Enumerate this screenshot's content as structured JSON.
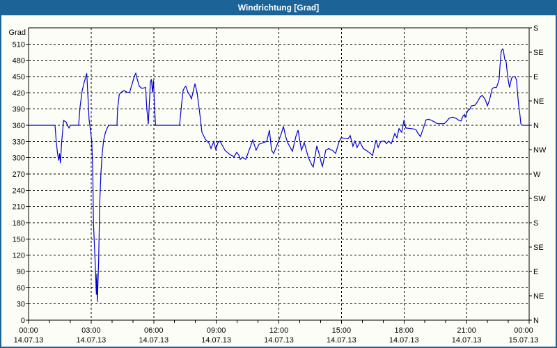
{
  "window": {
    "title": "Windrichtung [Grad]",
    "titlebar_color": "#1c6398",
    "background_color": "#fdfdf7"
  },
  "chart_data": {
    "type": "line",
    "title": "Windrichtung [Grad]",
    "grid": true,
    "legend": "none",
    "y_axis": {
      "unit_label": "Grad",
      "range": [
        0,
        540
      ],
      "tick_step": 30,
      "ticks": [
        0,
        30,
        60,
        90,
        120,
        150,
        180,
        210,
        240,
        270,
        300,
        330,
        360,
        390,
        420,
        450,
        480,
        510
      ]
    },
    "y_axis_right": {
      "description": "compass directions every 45 degrees",
      "ticks": [
        {
          "value": 540,
          "label": "S"
        },
        {
          "value": 495,
          "label": "SE"
        },
        {
          "value": 450,
          "label": "E"
        },
        {
          "value": 405,
          "label": "NE"
        },
        {
          "value": 360,
          "label": "N"
        },
        {
          "value": 315,
          "label": "NW"
        },
        {
          "value": 270,
          "label": "W"
        },
        {
          "value": 225,
          "label": "SW"
        },
        {
          "value": 180,
          "label": "S"
        },
        {
          "value": 135,
          "label": "SE"
        },
        {
          "value": 90,
          "label": "E"
        },
        {
          "value": 45,
          "label": "NE"
        },
        {
          "value": 0,
          "label": "N"
        }
      ]
    },
    "x_axis": {
      "range_hours": [
        0,
        24
      ],
      "gridline_every_hours": 3,
      "minor_tick_every_hours": 1,
      "major_ticks": [
        {
          "hours": 0,
          "time": "00:00",
          "date": "14.07.13"
        },
        {
          "hours": 3,
          "time": "03:00",
          "date": "14.07.13"
        },
        {
          "hours": 6,
          "time": "06:00",
          "date": "14.07.13"
        },
        {
          "hours": 9,
          "time": "09:00",
          "date": "14.07.13"
        },
        {
          "hours": 12,
          "time": "12:00",
          "date": "14.07.13"
        },
        {
          "hours": 15,
          "time": "15:00",
          "date": "14.07.13"
        },
        {
          "hours": 18,
          "time": "18:00",
          "date": "14.07.13"
        },
        {
          "hours": 21,
          "time": "21:00",
          "date": "14.07.13"
        },
        {
          "hours": 24,
          "time": "00:00",
          "date": "15.07.13"
        }
      ]
    },
    "series": [
      {
        "name": "Windrichtung",
        "color": "#0000cc",
        "points": [
          [
            0,
            360
          ],
          [
            1.27,
            360
          ],
          [
            1.33,
            330
          ],
          [
            1.39,
            308
          ],
          [
            1.45,
            295
          ],
          [
            1.49,
            308
          ],
          [
            1.53,
            290
          ],
          [
            1.59,
            330
          ],
          [
            1.64,
            351
          ],
          [
            1.68,
            369
          ],
          [
            1.8,
            366
          ],
          [
            1.87,
            360
          ],
          [
            1.94,
            355
          ],
          [
            2,
            360
          ],
          [
            2.4,
            360
          ],
          [
            2.47,
            394
          ],
          [
            2.57,
            424
          ],
          [
            2.68,
            441
          ],
          [
            2.79,
            456
          ],
          [
            2.85,
            411
          ],
          [
            2.9,
            371
          ],
          [
            2.94,
            360
          ],
          [
            3.03,
            330
          ],
          [
            3.08,
            272
          ],
          [
            3.11,
            180
          ],
          [
            3.15,
            145
          ],
          [
            3.19,
            109
          ],
          [
            3.25,
            47
          ],
          [
            3.27,
            86
          ],
          [
            3.3,
            34
          ],
          [
            3.36,
            111
          ],
          [
            3.41,
            216
          ],
          [
            3.47,
            272
          ],
          [
            3.53,
            308
          ],
          [
            3.6,
            332
          ],
          [
            3.69,
            347
          ],
          [
            3.8,
            357
          ],
          [
            3.84,
            360
          ],
          [
            4.24,
            360
          ],
          [
            4.27,
            390
          ],
          [
            4.35,
            417
          ],
          [
            4.44,
            421
          ],
          [
            4.57,
            424
          ],
          [
            4.74,
            421
          ],
          [
            4.84,
            420
          ],
          [
            4.97,
            437
          ],
          [
            5.07,
            450
          ],
          [
            5.14,
            456
          ],
          [
            5.21,
            445
          ],
          [
            5.31,
            432
          ],
          [
            5.44,
            428
          ],
          [
            5.61,
            430
          ],
          [
            5.67,
            390
          ],
          [
            5.74,
            362
          ],
          [
            5.84,
            440
          ],
          [
            5.89,
            445
          ],
          [
            5.94,
            420
          ],
          [
            5.99,
            443
          ],
          [
            6.04,
            395
          ],
          [
            6.09,
            360
          ],
          [
            7.24,
            360
          ],
          [
            7.34,
            400
          ],
          [
            7.41,
            424
          ],
          [
            7.48,
            430
          ],
          [
            7.54,
            432
          ],
          [
            7.64,
            421
          ],
          [
            7.74,
            415
          ],
          [
            7.81,
            409
          ],
          [
            7.98,
            437
          ],
          [
            8.08,
            420
          ],
          [
            8.21,
            381
          ],
          [
            8.31,
            347
          ],
          [
            8.48,
            334
          ],
          [
            8.65,
            327
          ],
          [
            8.75,
            317
          ],
          [
            8.88,
            330
          ],
          [
            8.98,
            315
          ],
          [
            9.08,
            328
          ],
          [
            9.18,
            331
          ],
          [
            9.41,
            314
          ],
          [
            9.65,
            306
          ],
          [
            9.85,
            302
          ],
          [
            9.98,
            310
          ],
          [
            10.08,
            305
          ],
          [
            10.15,
            297
          ],
          [
            10.25,
            301
          ],
          [
            10.41,
            297
          ],
          [
            10.65,
            322
          ],
          [
            10.75,
            333
          ],
          [
            10.91,
            314
          ],
          [
            11.05,
            325
          ],
          [
            11.25,
            328
          ],
          [
            11.42,
            330
          ],
          [
            11.55,
            351
          ],
          [
            11.65,
            314
          ],
          [
            11.75,
            308
          ],
          [
            11.98,
            330
          ],
          [
            12.12,
            345
          ],
          [
            12.22,
            358
          ],
          [
            12.32,
            340
          ],
          [
            12.42,
            328
          ],
          [
            12.65,
            312
          ],
          [
            12.82,
            340
          ],
          [
            12.92,
            351
          ],
          [
            13.08,
            314
          ],
          [
            13.22,
            328
          ],
          [
            13.42,
            300
          ],
          [
            13.58,
            287
          ],
          [
            13.65,
            283
          ],
          [
            13.82,
            322
          ],
          [
            13.95,
            305
          ],
          [
            14.05,
            288
          ],
          [
            14.09,
            284
          ],
          [
            14.25,
            314
          ],
          [
            14.39,
            317
          ],
          [
            14.59,
            313
          ],
          [
            14.72,
            308
          ],
          [
            14.89,
            330
          ],
          [
            14.99,
            337
          ],
          [
            15.15,
            336
          ],
          [
            15.32,
            335
          ],
          [
            15.42,
            341
          ],
          [
            15.55,
            321
          ],
          [
            15.65,
            331
          ],
          [
            15.75,
            319
          ],
          [
            15.89,
            329
          ],
          [
            16.05,
            317
          ],
          [
            16.22,
            313
          ],
          [
            16.39,
            308
          ],
          [
            16.49,
            304
          ],
          [
            16.66,
            333
          ],
          [
            16.76,
            319
          ],
          [
            16.89,
            330
          ],
          [
            17.06,
            331
          ],
          [
            17.16,
            326
          ],
          [
            17.26,
            331
          ],
          [
            17.39,
            326
          ],
          [
            17.56,
            345
          ],
          [
            17.66,
            337
          ],
          [
            17.76,
            354
          ],
          [
            17.89,
            347
          ],
          [
            18,
            370
          ],
          [
            18.09,
            355
          ],
          [
            18.33,
            354
          ],
          [
            18.49,
            353
          ],
          [
            18.59,
            351
          ],
          [
            18.66,
            346
          ],
          [
            18.79,
            339
          ],
          [
            18.93,
            355
          ],
          [
            19.06,
            370
          ],
          [
            19.19,
            371
          ],
          [
            19.33,
            369
          ],
          [
            19.46,
            366
          ],
          [
            19.6,
            363
          ],
          [
            19.8,
            363
          ],
          [
            19.93,
            363
          ],
          [
            20.06,
            368
          ],
          [
            20.16,
            373
          ],
          [
            20.33,
            375
          ],
          [
            20.49,
            373
          ],
          [
            20.59,
            370
          ],
          [
            20.73,
            368
          ],
          [
            20.83,
            377
          ],
          [
            20.9,
            380
          ],
          [
            20.93,
            375
          ],
          [
            21.06,
            387
          ],
          [
            21.16,
            390
          ],
          [
            21.23,
            396
          ],
          [
            21.4,
            397
          ],
          [
            21.5,
            402
          ],
          [
            21.66,
            413
          ],
          [
            21.76,
            415
          ],
          [
            21.9,
            407
          ],
          [
            22,
            396
          ],
          [
            22.1,
            407
          ],
          [
            22.23,
            428
          ],
          [
            22.33,
            430
          ],
          [
            22.43,
            430
          ],
          [
            22.5,
            437
          ],
          [
            22.56,
            445
          ],
          [
            22.6,
            469
          ],
          [
            22.66,
            497
          ],
          [
            22.73,
            501
          ],
          [
            22.76,
            499
          ],
          [
            22.83,
            482
          ],
          [
            22.9,
            477
          ],
          [
            22.93,
            465
          ],
          [
            23,
            443
          ],
          [
            23.06,
            430
          ],
          [
            23.16,
            447
          ],
          [
            23.23,
            450
          ],
          [
            23.33,
            450
          ],
          [
            23.4,
            443
          ],
          [
            23.43,
            426
          ],
          [
            23.5,
            396
          ],
          [
            23.56,
            379
          ],
          [
            23.6,
            363
          ],
          [
            23.66,
            360
          ],
          [
            24,
            360
          ]
        ]
      }
    ]
  }
}
